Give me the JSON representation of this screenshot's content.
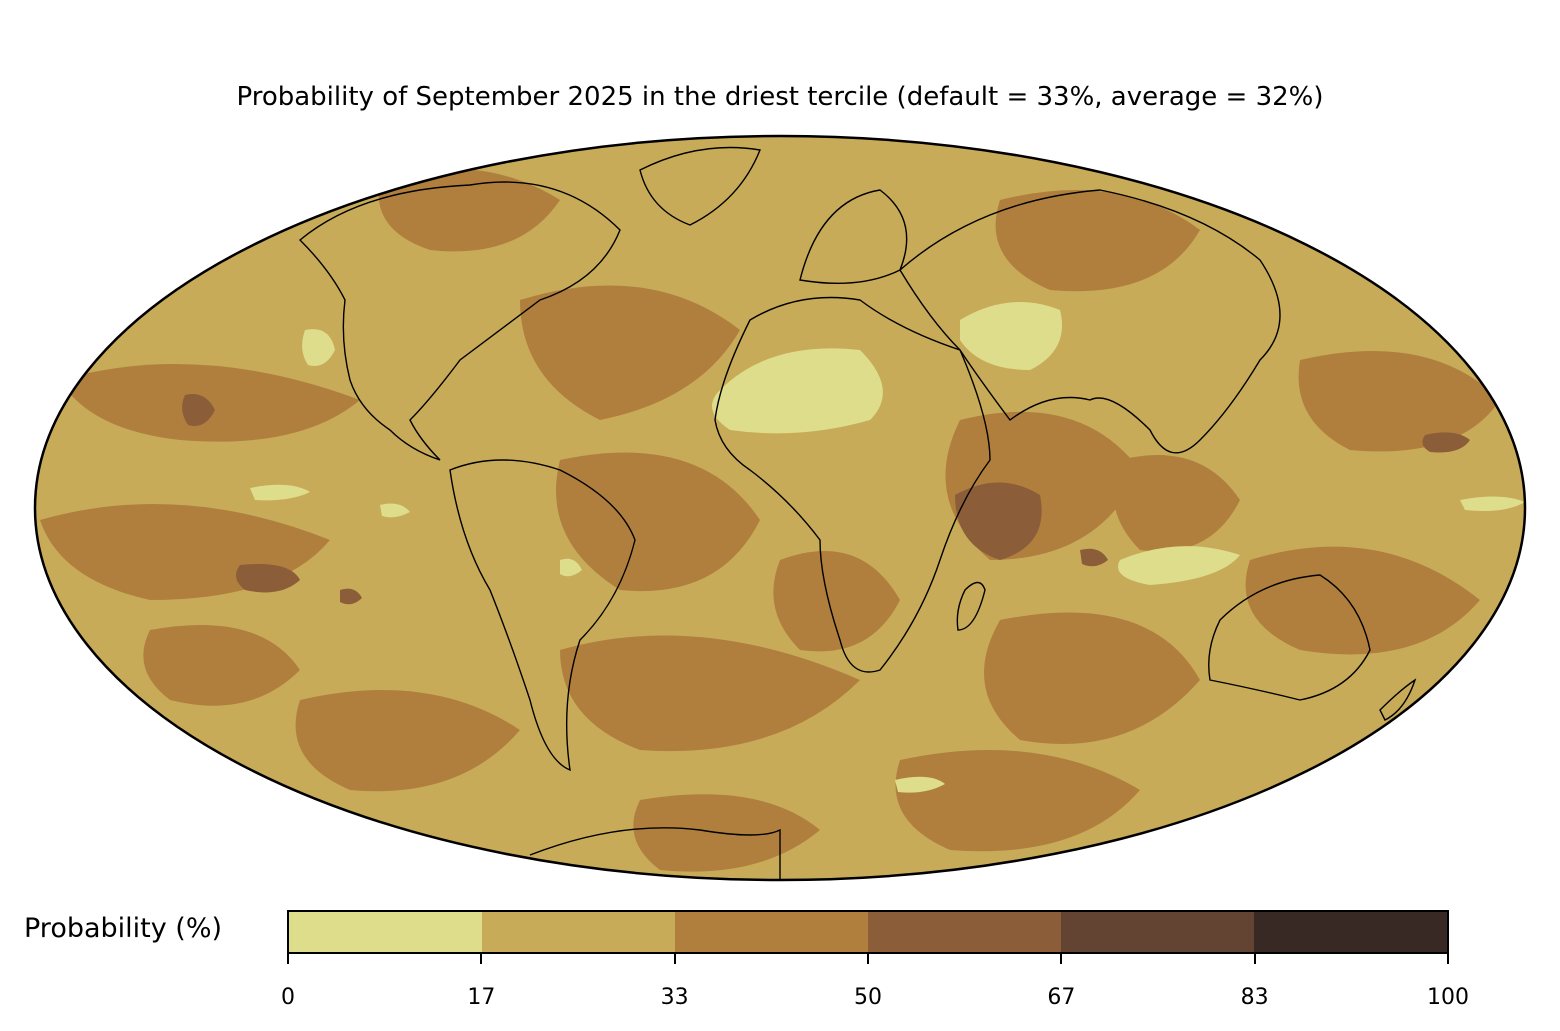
{
  "title": "Probability of September 2025 in the driest tercile (default = 33%, average = 32%)",
  "colorbar": {
    "label": "Probability (%)",
    "ticks": [
      "0",
      "17",
      "33",
      "50",
      "67",
      "83",
      "100"
    ],
    "colors": [
      "#dedd8c",
      "#c8ab58",
      "#b07f3e",
      "#8b5d38",
      "#634331",
      "#382924"
    ]
  },
  "map": {
    "projection": "mollweide",
    "ocean_land_base_color": "#c8ab58",
    "coastline_color": "#000000",
    "border_color": "#808080"
  }
}
